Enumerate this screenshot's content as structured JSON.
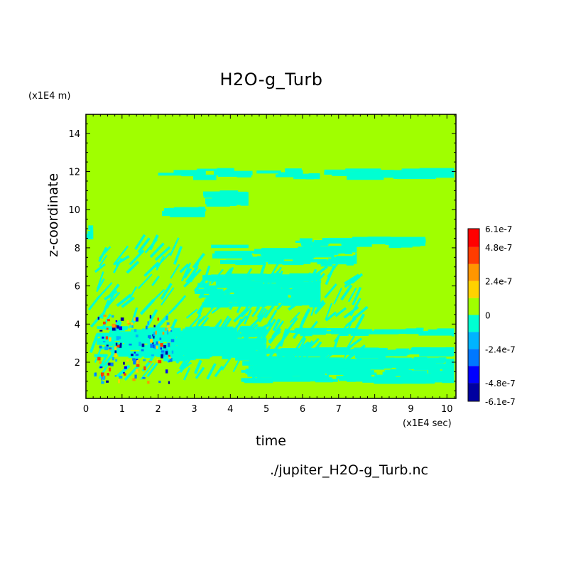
{
  "chart_data": {
    "type": "heatmap",
    "title": "H2O-g_Turb",
    "xlabel": "time",
    "ylabel": "z-coordinate",
    "x_unit": "(x1E4 sec)",
    "y_unit": "(x1E4 m)",
    "xlim": [
      0,
      10.25
    ],
    "ylim": [
      0.1,
      15
    ],
    "x_ticks": [
      "0",
      "1",
      "2",
      "3",
      "4",
      "5",
      "6",
      "7",
      "8",
      "9",
      "10"
    ],
    "y_ticks": [
      "2",
      "4",
      "6",
      "8",
      "10",
      "12",
      "14"
    ],
    "colorbar": {
      "tick_labels": [
        "6.1e-7",
        "4.8e-7",
        "2.4e-7",
        "0",
        "-2.4e-7",
        "-4.8e-7",
        "-6.1e-7"
      ],
      "levels": [
        -6.1e-07,
        -4.8e-07,
        -3.6e-07,
        -2.4e-07,
        -1.2e-07,
        0,
        1.2e-07,
        2.4e-07,
        3.6e-07,
        4.8e-07,
        6.1e-07
      ],
      "colors": [
        "#0000a0",
        "#0000ff",
        "#0078ff",
        "#00b4ff",
        "#00ffd2",
        "#a0ff00",
        "#ffd200",
        "#ff9600",
        "#ff3c00",
        "#ff0000"
      ]
    },
    "background_value": 0,
    "features": [
      {
        "desc": "negative streak",
        "x": [
          2.0,
          10.2
        ],
        "y": 11.9,
        "value": -1e-07
      },
      {
        "desc": "negative streak",
        "x": [
          5.8,
          9.4
        ],
        "y": 8.3,
        "value": -1e-07
      },
      {
        "desc": "negative streak",
        "x": [
          3.0,
          10.2
        ],
        "y": 2.5,
        "value": -1e-07
      },
      {
        "desc": "mixed turbulence region",
        "x": [
          0,
          3.0
        ],
        "y": [
          1.0,
          4.5
        ],
        "value_range": [
          -6.1e-07,
          6.1e-07
        ]
      }
    ]
  },
  "footer": {
    "source": "./jupiter_H2O-g_Turb.nc"
  }
}
